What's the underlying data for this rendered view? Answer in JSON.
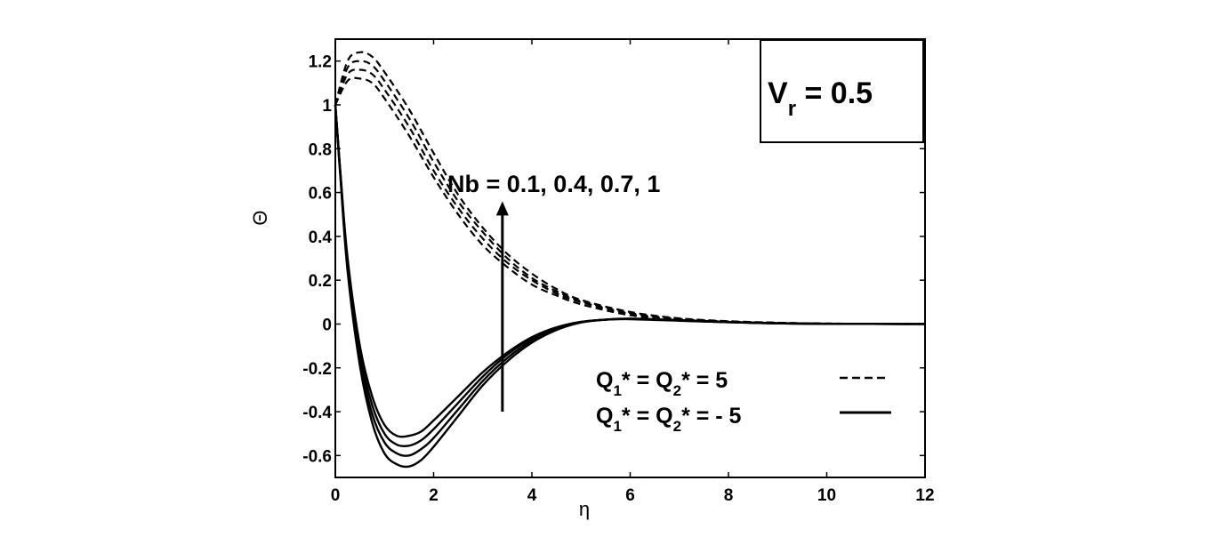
{
  "chart_data": {
    "type": "line",
    "xlabel": "η",
    "ylabel": "Θ",
    "xlim": [
      0,
      12
    ],
    "ylim": [
      -0.7,
      1.3
    ],
    "x_ticks": [
      "0",
      "2",
      "4",
      "6",
      "8",
      "10",
      "12"
    ],
    "y_ticks": [
      "-0.6",
      "-0.4",
      "-0.2",
      "0",
      "0.2",
      "0.4",
      "0.6",
      "0.8",
      "1",
      "1.2"
    ],
    "grid": false,
    "parameter_box": {
      "main": "V",
      "sub": "r",
      "rest": " = 0.5"
    },
    "annotation": "Nb = 0.1, 0.4, 0.7, 1",
    "arrow": {
      "x": 3.4,
      "y_from": -0.4,
      "y_to": 0.56
    },
    "legend": {
      "placement": "bottom-right",
      "entries": [
        {
          "label_parts": [
            "Q",
            "1",
            "* = Q",
            "2",
            "* = 5"
          ],
          "style": "dashed"
        },
        {
          "label_parts": [
            "Q",
            "1",
            "* = Q",
            "2",
            "* = - 5"
          ],
          "style": "solid"
        }
      ]
    },
    "series": [
      {
        "style": "dashed",
        "x": [
          0,
          0.25,
          0.5,
          0.75,
          1,
          1.5,
          2,
          2.5,
          3,
          3.5,
          4,
          4.5,
          5,
          6,
          7,
          8,
          9,
          10,
          12
        ],
        "y": [
          1.0,
          1.11,
          1.12,
          1.1,
          1.03,
          0.86,
          0.67,
          0.5,
          0.36,
          0.26,
          0.18,
          0.13,
          0.09,
          0.04,
          0.02,
          0.01,
          0.004,
          0.001,
          0
        ]
      },
      {
        "style": "dashed",
        "x": [
          0,
          0.25,
          0.5,
          0.75,
          1,
          1.5,
          2,
          2.5,
          3,
          3.5,
          4,
          4.5,
          5,
          6,
          7,
          8,
          9,
          10,
          12
        ],
        "y": [
          1.0,
          1.14,
          1.16,
          1.14,
          1.07,
          0.9,
          0.7,
          0.53,
          0.39,
          0.28,
          0.2,
          0.14,
          0.1,
          0.045,
          0.022,
          0.011,
          0.005,
          0.002,
          0
        ]
      },
      {
        "style": "dashed",
        "x": [
          0,
          0.25,
          0.5,
          0.75,
          1,
          1.5,
          2,
          2.5,
          3,
          3.5,
          4,
          4.5,
          5,
          6,
          7,
          8,
          9,
          10,
          12
        ],
        "y": [
          1.0,
          1.17,
          1.2,
          1.18,
          1.11,
          0.94,
          0.74,
          0.56,
          0.42,
          0.3,
          0.21,
          0.15,
          0.105,
          0.05,
          0.024,
          0.012,
          0.006,
          0.002,
          0
        ]
      },
      {
        "style": "dashed",
        "x": [
          0,
          0.25,
          0.5,
          0.75,
          1,
          1.5,
          2,
          2.5,
          3,
          3.5,
          4,
          4.5,
          5,
          6,
          7,
          8,
          9,
          10,
          12
        ],
        "y": [
          1.0,
          1.2,
          1.24,
          1.22,
          1.15,
          0.98,
          0.78,
          0.59,
          0.44,
          0.32,
          0.23,
          0.16,
          0.11,
          0.055,
          0.026,
          0.013,
          0.006,
          0.002,
          0
        ]
      },
      {
        "style": "solid",
        "x": [
          0,
          0.1,
          0.25,
          0.5,
          0.75,
          1,
          1.25,
          1.5,
          1.75,
          2,
          2.5,
          3,
          3.5,
          4,
          4.5,
          5,
          5.5,
          6,
          7,
          8,
          9,
          10,
          12
        ],
        "y": [
          1.0,
          0.7,
          0.3,
          -0.1,
          -0.33,
          -0.46,
          -0.51,
          -0.51,
          -0.49,
          -0.44,
          -0.33,
          -0.22,
          -0.13,
          -0.06,
          -0.015,
          0.01,
          0.02,
          0.022,
          0.015,
          0.008,
          0.003,
          0.001,
          0
        ]
      },
      {
        "style": "solid",
        "x": [
          0,
          0.1,
          0.25,
          0.5,
          0.75,
          1,
          1.25,
          1.5,
          1.75,
          2,
          2.5,
          3,
          3.5,
          4,
          4.5,
          5,
          5.5,
          6,
          7,
          8,
          9,
          10,
          12
        ],
        "y": [
          1.0,
          0.7,
          0.28,
          -0.13,
          -0.37,
          -0.5,
          -0.55,
          -0.555,
          -0.53,
          -0.48,
          -0.36,
          -0.24,
          -0.14,
          -0.065,
          -0.018,
          0.009,
          0.02,
          0.023,
          0.016,
          0.008,
          0.003,
          0.001,
          0
        ]
      },
      {
        "style": "solid",
        "x": [
          0,
          0.1,
          0.25,
          0.5,
          0.75,
          1,
          1.25,
          1.5,
          1.75,
          2,
          2.5,
          3,
          3.5,
          4,
          4.5,
          5,
          5.5,
          6,
          7,
          8,
          9,
          10,
          12
        ],
        "y": [
          1.0,
          0.69,
          0.26,
          -0.16,
          -0.41,
          -0.54,
          -0.59,
          -0.6,
          -0.57,
          -0.52,
          -0.39,
          -0.26,
          -0.155,
          -0.075,
          -0.022,
          0.008,
          0.02,
          0.024,
          0.017,
          0.009,
          0.003,
          0.001,
          0
        ]
      },
      {
        "style": "solid",
        "x": [
          0,
          0.1,
          0.25,
          0.5,
          0.75,
          1,
          1.25,
          1.5,
          1.75,
          2,
          2.5,
          3,
          3.5,
          4,
          4.5,
          5,
          5.5,
          6,
          7,
          8,
          9,
          10,
          12
        ],
        "y": [
          1.0,
          0.68,
          0.24,
          -0.19,
          -0.45,
          -0.59,
          -0.64,
          -0.65,
          -0.62,
          -0.56,
          -0.42,
          -0.28,
          -0.17,
          -0.085,
          -0.027,
          0.007,
          0.02,
          0.025,
          0.018,
          0.009,
          0.004,
          0.001,
          0
        ]
      }
    ]
  }
}
